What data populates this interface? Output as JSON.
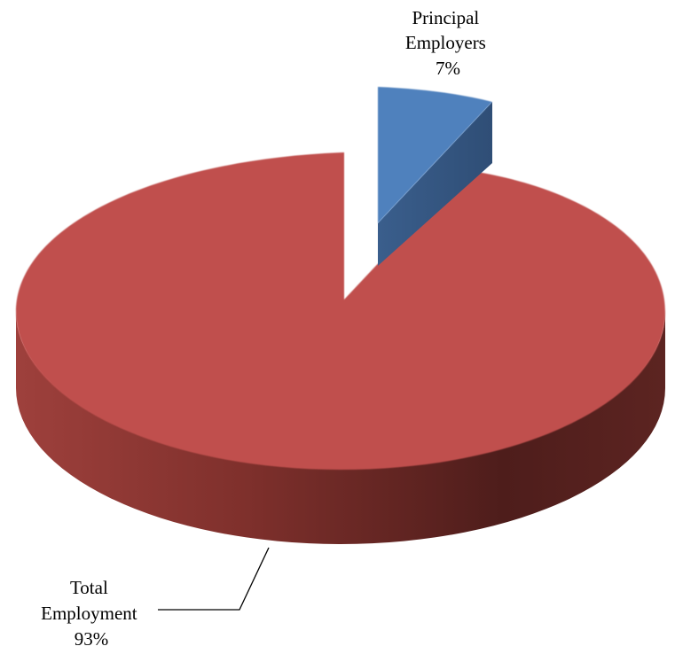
{
  "chart_data": {
    "type": "pie",
    "style": "3d-exploded",
    "series": [
      {
        "slices": [
          {
            "name_lines": [
              "Principal",
              "Employers"
            ],
            "label": "7%",
            "value": 7,
            "color": "#4F81BD"
          },
          {
            "name_lines": [
              "Total",
              "Employment"
            ],
            "label": "93%",
            "value": 93,
            "color": "#C0504D"
          }
        ]
      }
    ],
    "legend": "none"
  }
}
